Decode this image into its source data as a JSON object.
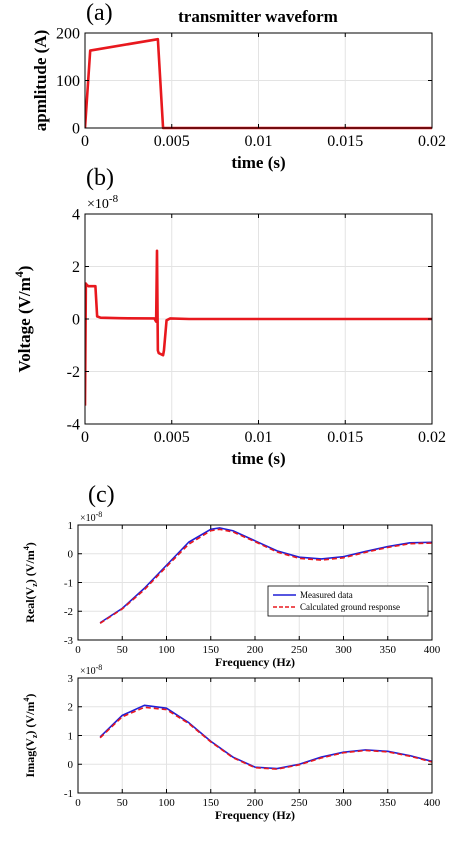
{
  "chart_data": [
    {
      "type": "line",
      "panel_label": "(a)",
      "title": "transmitter waveform",
      "xlabel": "time (s)",
      "ylabel": "apmlitude (A)",
      "xlim": [
        0,
        0.02
      ],
      "ylim": [
        0,
        200
      ],
      "xticks": [
        0,
        0.005,
        0.01,
        0.015,
        0.02
      ],
      "xtick_labels": [
        "0",
        "0.005",
        "0.01",
        "0.015",
        "0.02"
      ],
      "yticks": [
        0,
        100,
        200
      ],
      "ytick_labels": [
        "0",
        "100",
        "200"
      ],
      "grid": true,
      "series": [
        {
          "color": "#e8181e",
          "x": [
            0,
            0.0003,
            0.0042,
            0.0045,
            0.02
          ],
          "y": [
            0,
            163,
            187,
            0,
            0
          ]
        }
      ]
    },
    {
      "type": "line",
      "panel_label": "(b)",
      "xlabel": "time (s)",
      "ylabel_main": "Voltage (V/m",
      "ylabel_sup": "4",
      "ylabel_end": ")",
      "exponent_base": "×10",
      "exponent_power": "-8",
      "xlim": [
        0,
        0.02
      ],
      "ylim": [
        -4,
        4
      ],
      "xticks": [
        0,
        0.005,
        0.01,
        0.015,
        0.02
      ],
      "xtick_labels": [
        "0",
        "0.005",
        "0.01",
        "0.015",
        "0.02"
      ],
      "yticks": [
        -4,
        -2,
        0,
        2,
        4
      ],
      "ytick_labels": [
        "-4",
        "-2",
        "0",
        "2",
        "4"
      ],
      "grid": true,
      "series": [
        {
          "color": "#e8181e",
          "x": [
            0,
            5e-05,
            0.0001,
            0.0002,
            0.0006,
            0.0007,
            0.0009,
            0.002,
            0.004,
            0.0041,
            0.00415,
            0.0042,
            0.00425,
            0.0045,
            0.00455,
            0.0047,
            0.0049,
            0.006,
            0.02
          ],
          "y": [
            -3.3,
            1.35,
            1.3,
            1.25,
            1.25,
            0.1,
            0.05,
            0.03,
            0.02,
            -0.1,
            2.6,
            -1.2,
            -1.3,
            -1.38,
            -1.2,
            -0.05,
            0.02,
            0,
            0
          ]
        }
      ]
    },
    {
      "type": "line",
      "panel_label": "(c)",
      "xlabel": "Frequency (Hz)",
      "ylabel_main": "Real(V",
      "ylabel_sub": "z",
      "ylabel_mid": ") (V/m",
      "ylabel_sup": "4",
      "ylabel_end": ")",
      "exponent_base": "×10",
      "exponent_power": "-8",
      "xlim": [
        0,
        400
      ],
      "ylim": [
        -3,
        1
      ],
      "xticks": [
        0,
        50,
        100,
        150,
        200,
        250,
        300,
        350,
        400
      ],
      "xtick_labels": [
        "0",
        "50",
        "100",
        "150",
        "200",
        "250",
        "300",
        "350",
        "400"
      ],
      "yticks": [
        -3,
        -2,
        -1,
        0,
        1
      ],
      "ytick_labels": [
        "-3",
        "-2",
        "-1",
        "0",
        "1"
      ],
      "grid": true,
      "legend": "center-right",
      "series": [
        {
          "name": "Measured data",
          "color": "#1f1fd6",
          "dash": false,
          "x": [
            25,
            50,
            75,
            100,
            125,
            150,
            160,
            175,
            200,
            225,
            250,
            275,
            300,
            325,
            350,
            375,
            400
          ],
          "y": [
            -2.4,
            -1.9,
            -1.2,
            -0.4,
            0.4,
            0.85,
            0.9,
            0.8,
            0.45,
            0.1,
            -0.12,
            -0.18,
            -0.1,
            0.08,
            0.25,
            0.38,
            0.4
          ]
        },
        {
          "name": "Calculated ground response",
          "color": "#e8181e",
          "dash": true,
          "x": [
            25,
            50,
            75,
            100,
            125,
            150,
            160,
            175,
            200,
            225,
            250,
            275,
            300,
            325,
            350,
            375,
            400
          ],
          "y": [
            -2.42,
            -1.92,
            -1.25,
            -0.45,
            0.33,
            0.8,
            0.85,
            0.76,
            0.42,
            0.06,
            -0.16,
            -0.22,
            -0.14,
            0.05,
            0.22,
            0.35,
            0.37
          ]
        }
      ]
    },
    {
      "type": "line",
      "xlabel": "Frequency (Hz)",
      "ylabel_main": "Imag(V",
      "ylabel_sub": "z",
      "ylabel_mid": ") (V/m",
      "ylabel_sup": "4",
      "ylabel_end": ")",
      "exponent_base": "×10",
      "exponent_power": "-8",
      "xlim": [
        0,
        400
      ],
      "ylim": [
        -1,
        3
      ],
      "xticks": [
        0,
        50,
        100,
        150,
        200,
        250,
        300,
        350,
        400
      ],
      "xtick_labels": [
        "0",
        "50",
        "100",
        "150",
        "200",
        "250",
        "300",
        "350",
        "400"
      ],
      "yticks": [
        -1,
        0,
        1,
        2,
        3
      ],
      "ytick_labels": [
        "-1",
        "0",
        "1",
        "2",
        "3"
      ],
      "grid": true,
      "series": [
        {
          "name": "Measured data",
          "color": "#1f1fd6",
          "dash": false,
          "x": [
            25,
            50,
            75,
            100,
            125,
            150,
            175,
            200,
            225,
            250,
            275,
            300,
            325,
            350,
            375,
            400
          ],
          "y": [
            0.95,
            1.7,
            2.05,
            1.95,
            1.45,
            0.8,
            0.25,
            -0.1,
            -0.15,
            0.0,
            0.25,
            0.42,
            0.5,
            0.45,
            0.3,
            0.1
          ]
        },
        {
          "name": "Calculated ground response",
          "color": "#e8181e",
          "dash": true,
          "x": [
            25,
            50,
            75,
            100,
            125,
            150,
            175,
            200,
            225,
            250,
            275,
            300,
            325,
            350,
            375,
            400
          ],
          "y": [
            0.92,
            1.65,
            1.98,
            1.9,
            1.42,
            0.78,
            0.23,
            -0.12,
            -0.17,
            -0.02,
            0.22,
            0.4,
            0.48,
            0.43,
            0.28,
            0.08
          ]
        }
      ]
    }
  ]
}
